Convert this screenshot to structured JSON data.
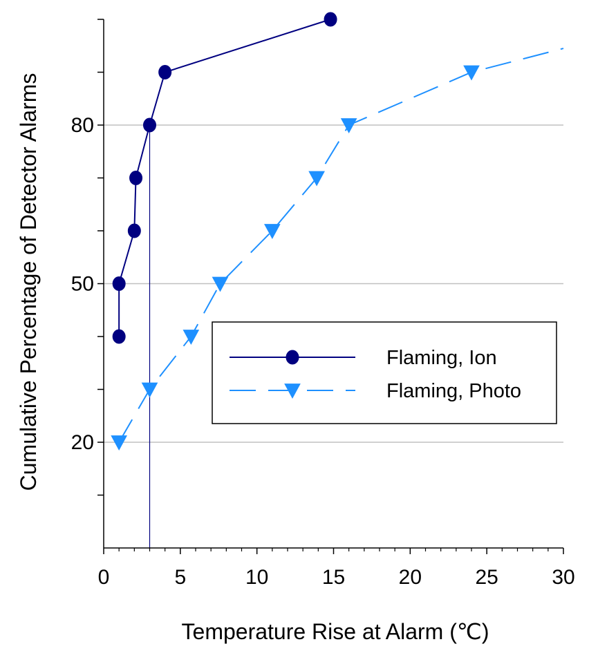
{
  "chart_data": {
    "type": "line",
    "xlabel": "Temperature Rise at Alarm (℃)",
    "ylabel": "Cumulative Percentage of Detector Alarms",
    "xlim": [
      0,
      30
    ],
    "ylim": [
      0,
      100
    ],
    "x_major_ticks": [
      0,
      5,
      10,
      15,
      20,
      25,
      30
    ],
    "x_tick_labels": [
      "0",
      "5",
      "10",
      "15",
      "20",
      "25",
      "30"
    ],
    "y_tick_labels": [
      {
        "value": 20,
        "label": "20"
      },
      {
        "value": 50,
        "label": "50"
      },
      {
        "value": 80,
        "label": "80"
      }
    ],
    "y_minor_ticks": [
      10,
      30,
      40,
      60,
      70,
      90
    ],
    "gridlines_y": [
      20,
      50,
      80
    ],
    "reference_line_x": 3,
    "legend_position": "center-right",
    "colors": {
      "ion": "#000080",
      "photo": "#1E90FF",
      "grid": "#C0C0C0",
      "axis": "#000000"
    },
    "series": [
      {
        "name": "Flaming, Ion",
        "marker": "circle",
        "line_style": "solid",
        "points": [
          {
            "x": 1,
            "y": 40
          },
          {
            "x": 1,
            "y": 50
          },
          {
            "x": 2,
            "y": 60
          },
          {
            "x": 2.1,
            "y": 70
          },
          {
            "x": 3,
            "y": 80
          },
          {
            "x": 4,
            "y": 90
          },
          {
            "x": 14.8,
            "y": 100
          }
        ]
      },
      {
        "name": "Flaming, Photo",
        "marker": "triangle-down",
        "line_style": "dashed",
        "points": [
          {
            "x": 1,
            "y": 20
          },
          {
            "x": 3,
            "y": 30
          },
          {
            "x": 5.7,
            "y": 40
          },
          {
            "x": 7.6,
            "y": 50
          },
          {
            "x": 11,
            "y": 60
          },
          {
            "x": 13.9,
            "y": 70
          },
          {
            "x": 16,
            "y": 80
          },
          {
            "x": 24,
            "y": 90
          },
          {
            "x": 30,
            "y": 94.5
          }
        ]
      }
    ]
  }
}
